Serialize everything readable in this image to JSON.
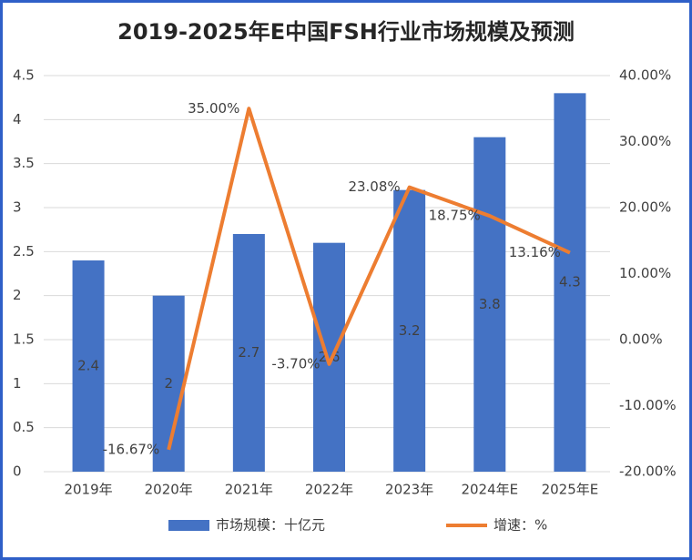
{
  "chart_data": {
    "type": "bar_line",
    "title": "2019-2025年E中国FSH行业市场规模及预测",
    "categories": [
      "2019年",
      "2020年",
      "2021年",
      "2022年",
      "2023年",
      "2024年E",
      "2025年E"
    ],
    "series": [
      {
        "name": "市场规模：十亿元",
        "type": "bar",
        "color": "#4472c4",
        "values": [
          2.4,
          2,
          2.7,
          2.6,
          3.2,
          3.8,
          4.3
        ]
      },
      {
        "name": "增速：%",
        "type": "line",
        "axis": "y2",
        "color": "#ed7d31",
        "values": [
          null,
          -16.67,
          35,
          -3.7,
          23.08,
          18.75,
          13.16
        ],
        "value_labels": [
          null,
          "-16.67%",
          "35.00%",
          "-3.70%",
          "23.08%",
          "18.75%",
          "13.16%"
        ]
      }
    ],
    "ylim": [
      0,
      4.5
    ],
    "yticks": [
      0,
      0.5,
      1,
      1.5,
      2,
      2.5,
      3,
      3.5,
      4,
      4.5
    ],
    "y2lim": [
      -20,
      40
    ],
    "y2ticks": [
      {
        "value": -20,
        "label": "-20.00%"
      },
      {
        "value": -10,
        "label": "-10.00%"
      },
      {
        "value": 0,
        "label": "0.00%"
      },
      {
        "value": 10,
        "label": "10.00%"
      },
      {
        "value": 20,
        "label": "20.00%"
      },
      {
        "value": 30,
        "label": "30.00%"
      },
      {
        "value": 40,
        "label": "40.00%"
      }
    ],
    "grid": true,
    "legend": "bottom"
  }
}
